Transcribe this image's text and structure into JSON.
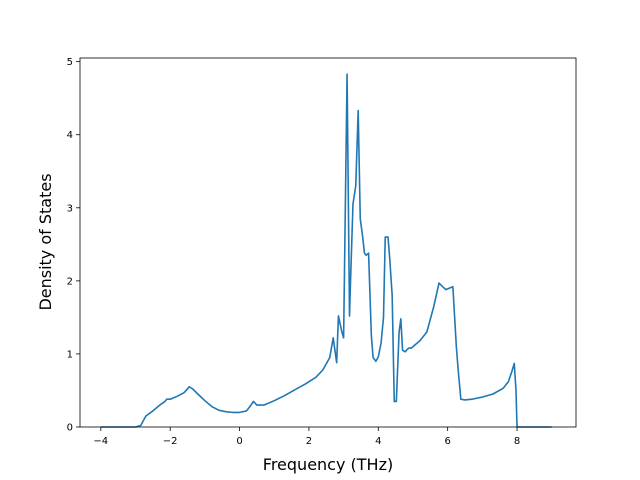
{
  "chart_data": {
    "type": "line",
    "title": "",
    "xlabel": "Frequency (THz)",
    "ylabel": "Density of States",
    "xlim": [
      -4.6,
      9.7
    ],
    "ylim": [
      0,
      5.05
    ],
    "xticks": [
      -4,
      -2,
      0,
      2,
      4,
      6,
      8
    ],
    "yticks": [
      0,
      1,
      2,
      3,
      4,
      5
    ],
    "grid": false,
    "legend": "none",
    "colors": {
      "line": "#1f77b4",
      "axes": "#000000",
      "background": "#ffffff"
    },
    "series": [
      {
        "x": [
          -4.0,
          -3.5,
          -3.0,
          -2.85,
          -2.7,
          -2.5,
          -2.3,
          -2.15,
          -2.1,
          -2.0,
          -1.8,
          -1.6,
          -1.45,
          -1.35,
          -1.2,
          -1.0,
          -0.8,
          -0.6,
          -0.4,
          -0.2,
          0.0,
          0.2,
          0.3,
          0.4,
          0.5,
          0.7,
          1.0,
          1.3,
          1.6,
          1.9,
          2.2,
          2.4,
          2.6,
          2.7,
          2.8,
          2.85,
          2.95,
          3.0,
          3.1,
          3.17,
          3.2,
          3.27,
          3.35,
          3.42,
          3.48,
          3.55,
          3.6,
          3.65,
          3.72,
          3.8,
          3.85,
          3.93,
          4.0,
          4.08,
          4.15,
          4.2,
          4.28,
          4.33,
          4.4,
          4.46,
          4.52,
          4.6,
          4.65,
          4.7,
          4.78,
          4.83,
          4.88,
          4.95,
          5.05,
          5.2,
          5.4,
          5.6,
          5.75,
          5.9,
          5.95,
          6.05,
          6.15,
          6.25,
          6.3,
          6.38,
          6.5,
          6.7,
          7.0,
          7.3,
          7.6,
          7.75,
          7.85,
          7.92,
          7.97,
          8.0,
          8.3,
          8.6,
          9.0
        ],
        "y": [
          0.0,
          0.0,
          0.0,
          0.02,
          0.15,
          0.22,
          0.3,
          0.35,
          0.38,
          0.38,
          0.42,
          0.47,
          0.55,
          0.52,
          0.45,
          0.36,
          0.28,
          0.23,
          0.21,
          0.2,
          0.2,
          0.22,
          0.28,
          0.35,
          0.3,
          0.3,
          0.36,
          0.43,
          0.51,
          0.59,
          0.68,
          0.78,
          0.95,
          1.22,
          0.88,
          1.52,
          1.3,
          1.22,
          4.83,
          1.52,
          2.0,
          3.05,
          3.3,
          4.33,
          2.85,
          2.6,
          2.38,
          2.35,
          2.38,
          1.25,
          0.95,
          0.9,
          0.96,
          1.15,
          1.5,
          2.6,
          2.6,
          2.3,
          1.8,
          0.35,
          0.35,
          1.3,
          1.48,
          1.05,
          1.03,
          1.06,
          1.08,
          1.08,
          1.12,
          1.18,
          1.3,
          1.65,
          1.97,
          1.9,
          1.88,
          1.9,
          1.92,
          1.1,
          0.8,
          0.38,
          0.37,
          0.38,
          0.41,
          0.45,
          0.53,
          0.62,
          0.76,
          0.87,
          0.5,
          0.0,
          0.0,
          0.0,
          0.0
        ]
      }
    ]
  }
}
